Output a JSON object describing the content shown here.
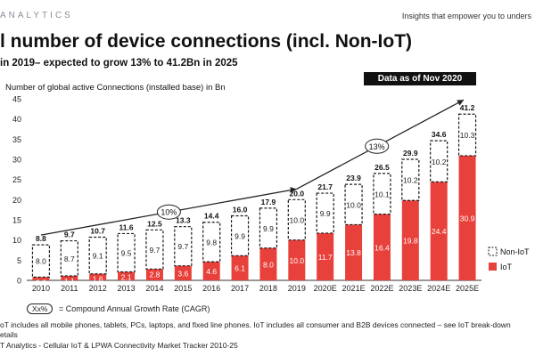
{
  "header": {
    "brand": "ANALYTICS",
    "tagline": "Insights that empower you to unders"
  },
  "title": "l number of device connections (incl. Non-IoT)",
  "subtitle": "in 2019– expected to grow 13% to 41.2Bn in 2025",
  "badge": "Data as of Nov 2020",
  "cagr_note": {
    "symbol": "Xx%",
    "text": "= Compound Annual Growth Rate (CAGR)"
  },
  "footnote": "oT includes all mobile phones, tablets, PCs, laptops, and fixed line phones. IoT includes all consumer and B2B devices connected – see IoT break-down\netails",
  "source": "T Analytics - Cellular IoT & LPWA Connectivity Market Tracker 2010-25",
  "colors": {
    "iot": "#e8403a",
    "nonIot_border": "#1a1a1a",
    "text": "#1a1a1a"
  },
  "chart_data": {
    "type": "bar",
    "stacked": true,
    "ylabel": "Number of global active Connections (installed base) in Bn",
    "ylim": [
      0,
      45
    ],
    "yticks": [
      0,
      5,
      10,
      15,
      20,
      25,
      30,
      35,
      40,
      45
    ],
    "categories": [
      "2010",
      "2011",
      "2012",
      "2013",
      "2014",
      "2015",
      "2016",
      "2017",
      "2018",
      "2019",
      "2020E",
      "2021E",
      "2022E",
      "2023E",
      "2024E",
      "2025E"
    ],
    "series": [
      {
        "name": "IoT",
        "values": [
          0.8,
          1.1,
          1.6,
          2.1,
          2.8,
          3.6,
          4.6,
          6.1,
          8.0,
          10.0,
          11.7,
          13.8,
          16.4,
          19.8,
          24.4,
          30.9
        ]
      },
      {
        "name": "Non-IoT",
        "values": [
          8.0,
          8.7,
          9.1,
          9.5,
          9.7,
          9.7,
          9.8,
          9.9,
          9.9,
          10.0,
          9.9,
          10.0,
          10.1,
          10.2,
          10.2,
          10.3
        ]
      }
    ],
    "totals": [
      8.8,
      9.7,
      10.7,
      11.6,
      12.5,
      13.3,
      14.4,
      16.0,
      17.9,
      20.0,
      21.7,
      23.9,
      26.5,
      29.9,
      34.6,
      41.2
    ],
    "cagr": [
      {
        "label": "10%",
        "from": "2010",
        "to": "2019"
      },
      {
        "label": "13%",
        "from": "2019",
        "to": "2025E"
      }
    ],
    "legend_position": "bottom-right",
    "grid": false
  }
}
